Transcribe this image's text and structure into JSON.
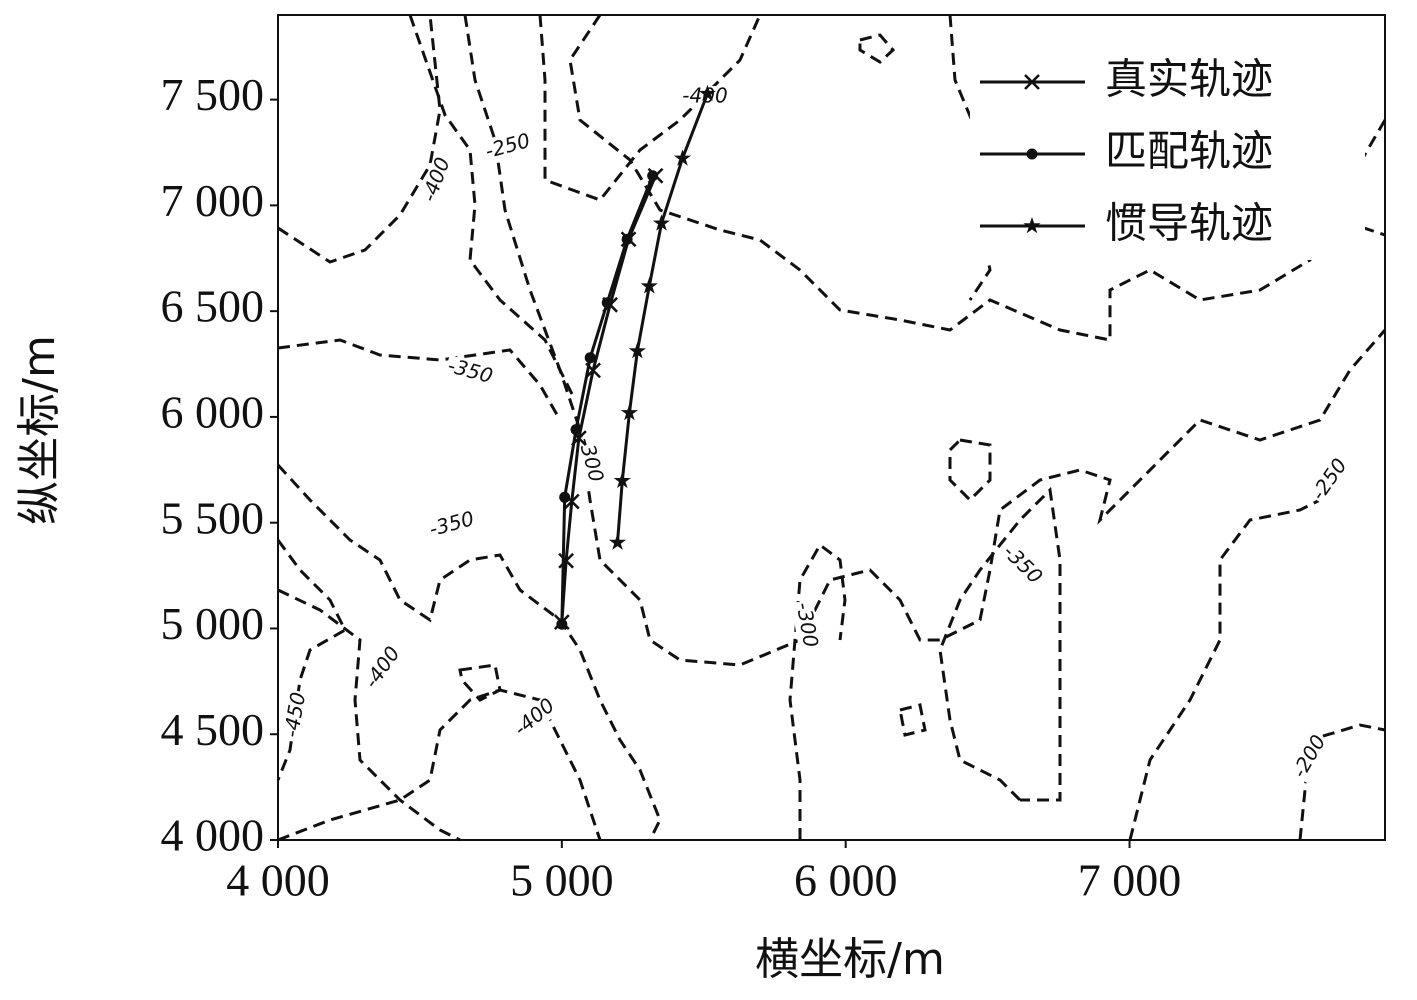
{
  "chart_data": {
    "type": "line",
    "x_label": "横坐标/m",
    "y_label": "纵坐标/m",
    "xlim": [
      4000,
      7900
    ],
    "ylim": [
      4000,
      7900
    ],
    "xticks": [
      {
        "value": 4000,
        "label": "4 000"
      },
      {
        "value": 5000,
        "label": "5 000"
      },
      {
        "value": 6000,
        "label": "6 000"
      },
      {
        "value": 7000,
        "label": "7 000"
      }
    ],
    "yticks": [
      {
        "value": 4000,
        "label": "4 000"
      },
      {
        "value": 4500,
        "label": "4 500"
      },
      {
        "value": 5000,
        "label": "5 000"
      },
      {
        "value": 5500,
        "label": "5 500"
      },
      {
        "value": 6000,
        "label": "6 000"
      },
      {
        "value": 6500,
        "label": "6 500"
      },
      {
        "value": 7000,
        "label": "7 000"
      },
      {
        "value": 7500,
        "label": "7 500"
      }
    ],
    "legend": "upper right",
    "series": [
      {
        "name": "真实轨迹",
        "color": "#111111",
        "marker": "x",
        "x": [
          5000,
          5015,
          5035,
          5060,
          5110,
          5170,
          5235,
          5330
        ],
        "values": [
          5030,
          5320,
          5600,
          5900,
          6220,
          6530,
          6840,
          7140
        ]
      },
      {
        "name": "匹配轨迹",
        "color": "#111111",
        "marker": "dot",
        "x": [
          5000,
          5010,
          5050,
          5100,
          5160,
          5230,
          5320
        ],
        "values": [
          5020,
          5620,
          5940,
          6280,
          6540,
          6840,
          7140
        ]
      },
      {
        "name": "惯导轨迹",
        "color": "#111111",
        "marker": "star",
        "x": [
          5196,
          5213,
          5238,
          5266,
          5308,
          5351,
          5425,
          5513
        ],
        "values": [
          5406,
          5698,
          6019,
          6311,
          6618,
          6915,
          7222,
          7528
        ]
      }
    ],
    "contour_labels": [
      -400,
      -250,
      -400,
      -350,
      -300,
      -350,
      -350,
      -300,
      -250,
      -400,
      -450,
      -400,
      -200
    ]
  }
}
